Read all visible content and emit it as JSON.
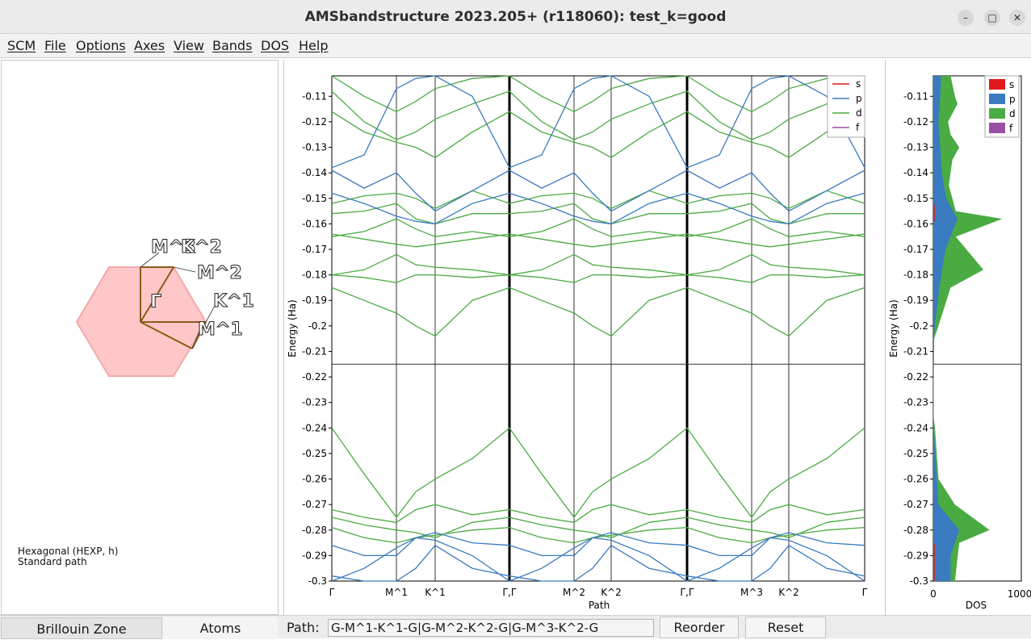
{
  "window": {
    "title": "AMSbandstructure 2023.205+ (r118060): test_k=good"
  },
  "menu": [
    "SCM",
    "File",
    "Options",
    "Axes",
    "View",
    "Bands",
    "DOS",
    "Help"
  ],
  "brillouin": {
    "labels": [
      "M^3",
      "M^2",
      "K^2",
      "Γ",
      "K^1",
      "M^1"
    ],
    "lattice_info": "Hexagonal (HEXP, h)",
    "path_info": "Standard path",
    "fill_color": "#ffc7c7",
    "path_color": "#8b5a1a"
  },
  "band_plot": {
    "xlabel": "Path",
    "ylabel": "Energy (Ha)",
    "ylim": [
      -0.3,
      -0.102
    ],
    "y_ticks": [
      "-0.11",
      "-0.12",
      "-0.13",
      "-0.14",
      "-0.15",
      "-0.16",
      "-0.17",
      "-0.18",
      "-0.19",
      "-0.2",
      "-0.21",
      "-0.22",
      "-0.23",
      "-0.24",
      "-0.25",
      "-0.26",
      "-0.27",
      "-0.28",
      "-0.29",
      "-0.3"
    ],
    "x_ticks": [
      "Γ",
      "M^1",
      "K^1",
      "Γ,Γ",
      "M^2",
      "K^2",
      "Γ,Γ",
      "M^3",
      "K^2",
      "Γ"
    ],
    "fermi_level": -0.215,
    "legend": [
      {
        "label": "s",
        "color": "#e31a1c"
      },
      {
        "label": "p",
        "color": "#3a7abf"
      },
      {
        "label": "d",
        "color": "#4aab42"
      },
      {
        "label": "f",
        "color": "#984ea3"
      }
    ]
  },
  "dos_plot": {
    "xlabel": "DOS",
    "ylabel": "Energy (Ha)",
    "x_ticks": [
      "0",
      "1000"
    ],
    "xlim": [
      0,
      1000
    ],
    "legend": [
      {
        "label": "s",
        "color": "#e31a1c"
      },
      {
        "label": "p",
        "color": "#3a7abf"
      },
      {
        "label": "d",
        "color": "#4aab42"
      },
      {
        "label": "f",
        "color": "#984ea3"
      }
    ]
  },
  "tabs": [
    "Brillouin Zone",
    "Atoms"
  ],
  "path": {
    "label": "Path:",
    "value": "G-M^1-K^1-G|G-M^2-K^2-G|G-M^3-K^2-G"
  },
  "buttons": {
    "reorder": "Reorder",
    "reset": "Reset"
  },
  "chart_data": [
    {
      "type": "line",
      "xlabel": "Path",
      "ylabel": "Energy (Ha)",
      "x_ticks": [
        "Γ",
        "M^1",
        "K^1",
        "Γ,Γ",
        "M^2",
        "K^2",
        "Γ,Γ",
        "M^3",
        "K^2",
        "Γ"
      ],
      "ylim": [
        -0.3,
        -0.102
      ],
      "series": [
        {
          "name": "p",
          "values": [
            -0.138,
            -0.145,
            -0.155,
            -0.148,
            -0.138,
            -0.145,
            -0.155,
            -0.148,
            -0.138,
            -0.145,
            -0.155,
            -0.148,
            -0.138
          ]
        },
        {
          "name": "d",
          "values": [
            -0.165,
            -0.168,
            -0.165,
            -0.162,
            -0.165,
            -0.168,
            -0.165,
            -0.162,
            -0.165,
            -0.168,
            -0.165,
            -0.162,
            -0.165
          ]
        },
        {
          "name": "d",
          "values": [
            -0.24,
            -0.265,
            -0.26,
            -0.255,
            -0.24,
            -0.265,
            -0.26,
            -0.255,
            -0.24,
            -0.265,
            -0.26,
            -0.255,
            -0.24
          ]
        }
      ]
    },
    {
      "type": "area",
      "xlabel": "DOS",
      "ylabel": "Energy (Ha)",
      "xlim": [
        0,
        1000
      ],
      "series": [
        {
          "name": "p",
          "values": []
        },
        {
          "name": "d",
          "values": []
        }
      ]
    }
  ]
}
